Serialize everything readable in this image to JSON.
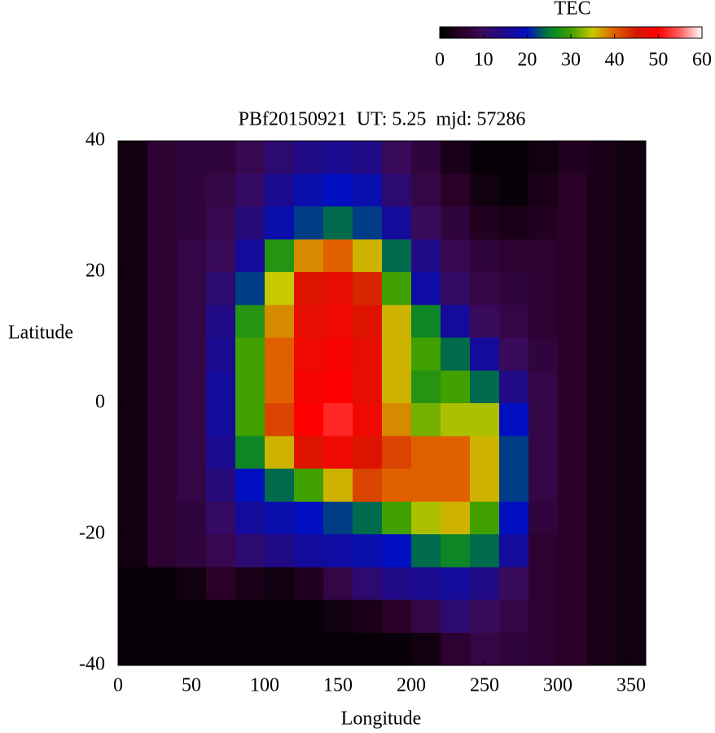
{
  "chart_data": {
    "type": "heatmap",
    "title": "PBf20150921  UT: 5.25  mjd: 57286",
    "xlabel": "Longitude",
    "ylabel": "Latitude",
    "colorbar_label": "TEC",
    "xlim": [
      0,
      360
    ],
    "ylim": [
      -40,
      40
    ],
    "xticks": [
      0,
      50,
      100,
      150,
      200,
      250,
      300,
      350
    ],
    "yticks": [
      -40,
      -20,
      0,
      20,
      40
    ],
    "clim": [
      0,
      60
    ],
    "cticks": [
      0,
      10,
      20,
      30,
      40,
      50,
      60
    ],
    "colormap": [
      {
        "value": 0,
        "color": "#000000"
      },
      {
        "value": 5,
        "color": "#2a0028"
      },
      {
        "value": 10,
        "color": "#3a0a5a"
      },
      {
        "value": 15,
        "color": "#1a0a90"
      },
      {
        "value": 20,
        "color": "#0010c0"
      },
      {
        "value": 25,
        "color": "#008030"
      },
      {
        "value": 30,
        "color": "#40a000"
      },
      {
        "value": 35,
        "color": "#c8c800"
      },
      {
        "value": 40,
        "color": "#e06000"
      },
      {
        "value": 45,
        "color": "#d41800"
      },
      {
        "value": 50,
        "color": "#ff0000"
      },
      {
        "value": 55,
        "color": "#ff6060"
      },
      {
        "value": 60,
        "color": "#ffffff"
      }
    ],
    "x": [
      10,
      30,
      50,
      70,
      90,
      110,
      130,
      150,
      170,
      190,
      210,
      230,
      250,
      270,
      290,
      310,
      330,
      350
    ],
    "y": [
      37.5,
      32.5,
      27.5,
      22.5,
      17.5,
      12.5,
      7.5,
      2.5,
      -2.5,
      -7.5,
      -12.5,
      -17.5,
      -22.5,
      -27.5,
      -32.5,
      -37.5
    ],
    "z": [
      [
        2,
        6,
        7,
        7,
        9,
        12,
        14,
        15,
        14,
        10,
        7,
        3,
        1,
        1,
        2,
        4,
        3,
        2
      ],
      [
        2,
        6,
        7,
        8,
        11,
        15,
        18,
        20,
        18,
        12,
        8,
        5,
        2,
        1,
        3,
        5,
        3,
        2
      ],
      [
        2,
        6,
        7,
        9,
        13,
        18,
        22,
        24,
        22,
        16,
        10,
        7,
        4,
        3,
        4,
        5,
        3,
        2
      ],
      [
        2,
        6,
        8,
        10,
        16,
        28,
        38,
        40,
        36,
        24,
        14,
        9,
        7,
        6,
        6,
        5,
        3,
        2
      ],
      [
        2,
        6,
        8,
        12,
        22,
        35,
        46,
        47,
        44,
        30,
        17,
        11,
        8,
        7,
        6,
        5,
        3,
        2
      ],
      [
        2,
        6,
        8,
        14,
        28,
        38,
        47,
        48,
        46,
        36,
        26,
        16,
        10,
        8,
        6,
        5,
        3,
        2
      ],
      [
        2,
        6,
        8,
        15,
        30,
        40,
        48,
        49,
        47,
        36,
        30,
        24,
        16,
        10,
        7,
        5,
        3,
        2
      ],
      [
        2,
        6,
        8,
        16,
        30,
        40,
        49,
        50,
        47,
        36,
        28,
        30,
        24,
        14,
        8,
        5,
        3,
        2
      ],
      [
        2,
        6,
        8,
        16,
        30,
        42,
        50,
        52,
        48,
        38,
        32,
        34,
        34,
        20,
        8,
        5,
        3,
        2
      ],
      [
        2,
        6,
        8,
        15,
        26,
        36,
        46,
        48,
        46,
        42,
        40,
        40,
        36,
        22,
        8,
        5,
        3,
        2
      ],
      [
        2,
        6,
        8,
        13,
        20,
        24,
        30,
        36,
        42,
        40,
        40,
        40,
        36,
        22,
        8,
        5,
        3,
        2
      ],
      [
        2,
        6,
        7,
        11,
        16,
        18,
        20,
        22,
        24,
        30,
        34,
        36,
        30,
        20,
        7,
        5,
        3,
        2
      ],
      [
        2,
        6,
        7,
        9,
        12,
        14,
        16,
        17,
        18,
        20,
        24,
        26,
        24,
        16,
        6,
        5,
        3,
        2
      ],
      [
        1,
        1,
        2,
        5,
        3,
        2,
        4,
        8,
        12,
        14,
        15,
        16,
        14,
        10,
        6,
        5,
        3,
        2
      ],
      [
        1,
        1,
        1,
        1,
        1,
        1,
        1,
        2,
        3,
        5,
        8,
        12,
        10,
        8,
        6,
        5,
        3,
        2
      ],
      [
        1,
        1,
        1,
        1,
        1,
        1,
        1,
        1,
        1,
        1,
        2,
        6,
        8,
        7,
        6,
        5,
        3,
        2
      ]
    ]
  }
}
